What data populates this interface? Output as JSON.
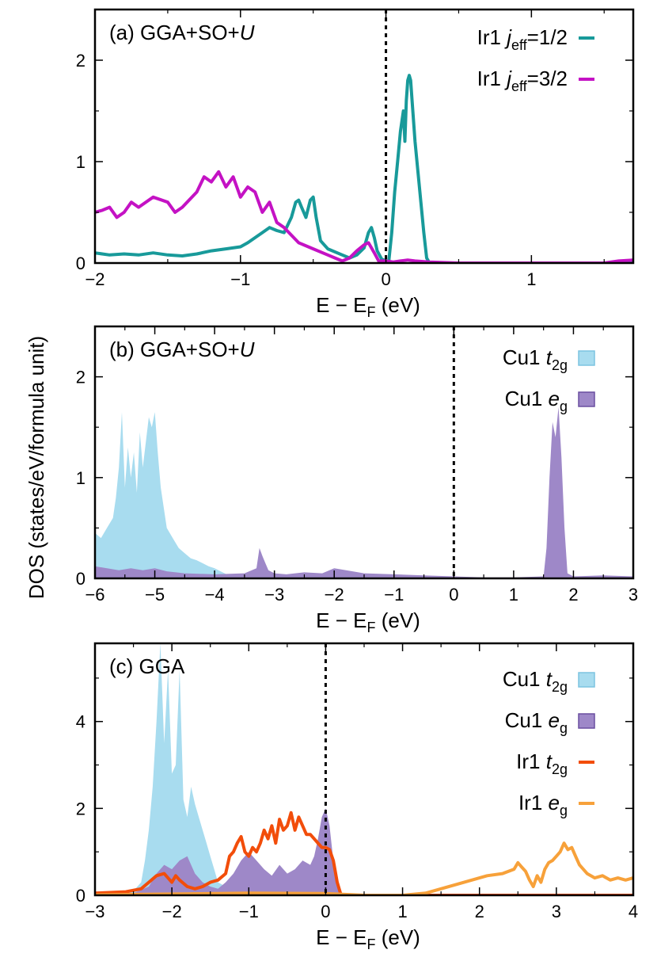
{
  "figure": {
    "ylabel": "DOS (states/eV/formula unit)"
  },
  "chart_data": [
    {
      "id": "a",
      "type": "line",
      "label_prefix": "(a) GGA+SO+",
      "label_italic": "U",
      "xlabel": "E − E",
      "xlabel_sub": "F",
      "xlabel_suffix": " (eV)",
      "xlim": [
        -2,
        1.7
      ],
      "ylim": [
        0,
        2.5
      ],
      "xticks": [
        -2,
        -1,
        0,
        1
      ],
      "xtick_labels": [
        "−2",
        "−1",
        "0",
        "1"
      ],
      "yticks": [
        0,
        1,
        2
      ],
      "ytick_labels": [
        "0",
        "1",
        "2"
      ],
      "fermi": 0,
      "legend": [
        {
          "pre": "Ir1 ",
          "it": "j",
          "sub": "eff",
          "post": "=1/2",
          "color": "#189a9a",
          "style": "line"
        },
        {
          "pre": "Ir1 ",
          "it": "j",
          "sub": "eff",
          "post": "=3/2",
          "color": "#c412c4",
          "style": "line"
        }
      ],
      "series": [
        {
          "name": "Ir1 jeff=1/2",
          "color": "#189a9a",
          "style": "line",
          "width": 4,
          "x": [
            -2.0,
            -1.9,
            -1.8,
            -1.7,
            -1.6,
            -1.5,
            -1.4,
            -1.3,
            -1.2,
            -1.1,
            -1.0,
            -0.95,
            -0.9,
            -0.85,
            -0.8,
            -0.75,
            -0.7,
            -0.65,
            -0.62,
            -0.6,
            -0.58,
            -0.55,
            -0.52,
            -0.5,
            -0.48,
            -0.45,
            -0.4,
            -0.3,
            -0.25,
            -0.2,
            -0.15,
            -0.12,
            -0.1,
            -0.08,
            -0.06,
            -0.03,
            0.0,
            0.02,
            0.04,
            0.06,
            0.08,
            0.1,
            0.12,
            0.13,
            0.14,
            0.15,
            0.16,
            0.17,
            0.18,
            0.2,
            0.22,
            0.24,
            0.26,
            0.28,
            0.3,
            0.5,
            1.0,
            1.7
          ],
          "y": [
            0.1,
            0.08,
            0.09,
            0.08,
            0.1,
            0.08,
            0.07,
            0.09,
            0.12,
            0.14,
            0.16,
            0.2,
            0.25,
            0.3,
            0.35,
            0.32,
            0.3,
            0.45,
            0.6,
            0.62,
            0.55,
            0.45,
            0.62,
            0.65,
            0.45,
            0.22,
            0.14,
            0.08,
            0.05,
            0.08,
            0.15,
            0.3,
            0.35,
            0.25,
            0.12,
            0.04,
            0.02,
            0.02,
            0.3,
            0.7,
            1.0,
            1.3,
            1.5,
            1.2,
            1.6,
            1.8,
            1.85,
            1.8,
            1.6,
            1.2,
            0.9,
            0.6,
            0.3,
            0.05,
            0.0,
            0.0,
            0.0,
            0.0
          ]
        },
        {
          "name": "Ir1 jeff=3/2",
          "color": "#c412c4",
          "style": "line",
          "width": 4,
          "x": [
            -2.0,
            -1.95,
            -1.9,
            -1.85,
            -1.8,
            -1.75,
            -1.7,
            -1.6,
            -1.5,
            -1.45,
            -1.4,
            -1.3,
            -1.25,
            -1.2,
            -1.15,
            -1.1,
            -1.05,
            -1.0,
            -0.95,
            -0.9,
            -0.85,
            -0.8,
            -0.75,
            -0.7,
            -0.6,
            -0.5,
            -0.4,
            -0.35,
            -0.3,
            -0.25,
            -0.2,
            -0.15,
            -0.12,
            -0.1,
            -0.08,
            -0.05,
            0.0,
            0.05,
            0.1,
            0.15,
            0.2,
            0.3,
            0.5,
            1.0,
            1.5,
            1.6,
            1.7
          ],
          "y": [
            0.5,
            0.52,
            0.55,
            0.45,
            0.5,
            0.6,
            0.55,
            0.65,
            0.6,
            0.5,
            0.55,
            0.7,
            0.85,
            0.8,
            0.9,
            0.75,
            0.85,
            0.65,
            0.75,
            0.7,
            0.5,
            0.6,
            0.4,
            0.35,
            0.2,
            0.14,
            0.08,
            0.05,
            0.02,
            0.05,
            0.12,
            0.18,
            0.2,
            0.15,
            0.1,
            0.02,
            0.02,
            0.01,
            0.02,
            0.03,
            0.02,
            0.01,
            0.0,
            0.0,
            0.0,
            0.02,
            0.03
          ]
        }
      ]
    },
    {
      "id": "b",
      "type": "area",
      "label_prefix": "(b) GGA+SO+",
      "label_italic": "U",
      "xlabel": "E − E",
      "xlabel_sub": "F",
      "xlabel_suffix": " (eV)",
      "xlim": [
        -6,
        3
      ],
      "ylim": [
        0,
        2.5
      ],
      "xticks": [
        -6,
        -5,
        -4,
        -3,
        -2,
        -1,
        0,
        1,
        2,
        3
      ],
      "xtick_labels": [
        "−6",
        "−5",
        "−4",
        "−3",
        "−2",
        "−1",
        "0",
        "1",
        "2",
        "3"
      ],
      "yticks": [
        0,
        1,
        2
      ],
      "ytick_labels": [
        "0",
        "1",
        "2"
      ],
      "fermi": 0,
      "legend": [
        {
          "pre": "Cu1 ",
          "it": "t",
          "sub": "2g",
          "post": "",
          "color": "#a8dcef",
          "style": "fill"
        },
        {
          "pre": "Cu1 ",
          "it": "e",
          "sub": "g",
          "post": "",
          "color": "#9e88c8",
          "style": "fill"
        }
      ],
      "series": [
        {
          "name": "Cu1 t2g",
          "color": "#a8dcef",
          "style": "fill",
          "x": [
            -6.0,
            -5.9,
            -5.8,
            -5.7,
            -5.65,
            -5.6,
            -5.55,
            -5.5,
            -5.45,
            -5.4,
            -5.35,
            -5.3,
            -5.25,
            -5.2,
            -5.15,
            -5.1,
            -5.05,
            -5.0,
            -4.95,
            -4.9,
            -4.85,
            -4.8,
            -4.7,
            -4.6,
            -4.5,
            -4.4,
            -4.3,
            -4.2,
            -4.1,
            -4.0,
            -3.9,
            -3.8,
            -3.7,
            -3.6,
            3.0
          ],
          "y": [
            0.45,
            0.4,
            0.5,
            0.6,
            0.8,
            1.1,
            1.65,
            0.9,
            1.3,
            1.0,
            1.25,
            0.85,
            1.45,
            1.1,
            1.35,
            1.6,
            1.5,
            1.65,
            1.25,
            0.9,
            0.7,
            0.5,
            0.4,
            0.3,
            0.25,
            0.2,
            0.18,
            0.15,
            0.12,
            0.1,
            0.07,
            0.04,
            0.01,
            0.0,
            0.0
          ]
        },
        {
          "name": "Cu1 eg",
          "color": "#9e88c8",
          "style": "fill",
          "x": [
            -6.0,
            -5.8,
            -5.6,
            -5.4,
            -5.2,
            -5.0,
            -4.8,
            -4.5,
            -4.0,
            -3.5,
            -3.3,
            -3.25,
            -3.2,
            -3.15,
            -3.1,
            -3.0,
            -2.8,
            -2.5,
            -2.2,
            -2.0,
            -1.8,
            -1.5,
            -1.0,
            -0.5,
            0.0,
            0.5,
            1.0,
            1.5,
            1.55,
            1.6,
            1.65,
            1.7,
            1.75,
            1.8,
            1.85,
            1.9,
            2.0,
            2.5,
            3.0
          ],
          "y": [
            0.12,
            0.1,
            0.08,
            0.1,
            0.08,
            0.1,
            0.07,
            0.05,
            0.04,
            0.05,
            0.1,
            0.3,
            0.22,
            0.15,
            0.08,
            0.05,
            0.04,
            0.06,
            0.05,
            0.1,
            0.08,
            0.05,
            0.04,
            0.03,
            0.02,
            0.01,
            0.01,
            0.02,
            0.3,
            1.0,
            1.55,
            1.4,
            1.7,
            1.2,
            0.5,
            0.05,
            0.02,
            0.03,
            0.02
          ]
        }
      ]
    },
    {
      "id": "c",
      "type": "area",
      "label_prefix": "(c) GGA",
      "label_italic": "",
      "xlabel": "E − E",
      "xlabel_sub": "F",
      "xlabel_suffix": " (eV)",
      "xlim": [
        -3,
        4
      ],
      "ylim": [
        0,
        5.8
      ],
      "xticks": [
        -3,
        -2,
        -1,
        0,
        1,
        2,
        3,
        4
      ],
      "xtick_labels": [
        "−3",
        "−2",
        "−1",
        "0",
        "1",
        "2",
        "3",
        "4"
      ],
      "yticks": [
        0,
        2,
        4
      ],
      "ytick_labels": [
        "0",
        "2",
        "4"
      ],
      "fermi": 0,
      "legend": [
        {
          "pre": "Cu1 ",
          "it": "t",
          "sub": "2g",
          "post": "",
          "color": "#a8dcef",
          "style": "fill"
        },
        {
          "pre": "Cu1 ",
          "it": "e",
          "sub": "g",
          "post": "",
          "color": "#9e88c8",
          "style": "fill"
        },
        {
          "pre": "Ir1 ",
          "it": "t",
          "sub": "2g",
          "post": "",
          "color": "#f24d0a",
          "style": "line"
        },
        {
          "pre": "Ir1 ",
          "it": "e",
          "sub": "g",
          "post": "",
          "color": "#f7a13a",
          "style": "line"
        }
      ],
      "series": [
        {
          "name": "Cu1 t2g",
          "color": "#a8dcef",
          "style": "fill",
          "x": [
            -3.0,
            -2.7,
            -2.5,
            -2.4,
            -2.35,
            -2.3,
            -2.25,
            -2.2,
            -2.15,
            -2.1,
            -2.05,
            -2.0,
            -1.95,
            -1.9,
            -1.85,
            -1.8,
            -1.75,
            -1.7,
            -1.65,
            -1.6,
            -1.55,
            -1.5,
            -1.45,
            -1.4,
            -1.3,
            -1.2,
            -1.1,
            -1.0,
            -0.9,
            -0.8,
            -0.7,
            -0.6,
            -0.5,
            -0.4,
            -0.3,
            -0.2,
            -0.1,
            0.0,
            0.1,
            0.15,
            0.2,
            4.0
          ],
          "y": [
            0.02,
            0.05,
            0.1,
            0.3,
            0.8,
            1.5,
            2.5,
            4.0,
            5.8,
            3.5,
            5.2,
            2.8,
            3.0,
            5.2,
            2.2,
            1.8,
            2.5,
            2.1,
            1.8,
            1.5,
            1.2,
            0.9,
            0.6,
            0.3,
            0.2,
            0.15,
            0.2,
            0.15,
            0.1,
            0.12,
            0.1,
            0.15,
            0.12,
            0.1,
            0.15,
            0.12,
            0.1,
            0.1,
            0.05,
            0.02,
            0.0,
            0.0
          ]
        },
        {
          "name": "Cu1 eg",
          "color": "#9e88c8",
          "style": "fill",
          "x": [
            -3.0,
            -2.5,
            -2.3,
            -2.2,
            -2.1,
            -2.0,
            -1.9,
            -1.8,
            -1.7,
            -1.6,
            -1.5,
            -1.4,
            -1.3,
            -1.2,
            -1.1,
            -1.0,
            -0.9,
            -0.8,
            -0.7,
            -0.6,
            -0.5,
            -0.4,
            -0.3,
            -0.2,
            -0.15,
            -0.1,
            -0.05,
            0.0,
            0.05,
            0.1,
            0.15,
            0.2,
            4.0
          ],
          "y": [
            0.02,
            0.05,
            0.2,
            0.5,
            0.7,
            0.6,
            0.8,
            0.9,
            0.5,
            0.3,
            0.2,
            0.15,
            0.3,
            0.5,
            0.8,
            1.0,
            0.8,
            0.6,
            0.45,
            0.7,
            0.5,
            0.6,
            0.8,
            0.7,
            0.9,
            1.3,
            1.8,
            2.0,
            1.6,
            0.8,
            0.2,
            0.0,
            0.0
          ]
        },
        {
          "name": "Ir1 t2g",
          "color": "#f24d0a",
          "style": "line",
          "width": 4,
          "x": [
            -3.0,
            -2.6,
            -2.4,
            -2.3,
            -2.2,
            -2.1,
            -2.0,
            -1.95,
            -1.9,
            -1.8,
            -1.7,
            -1.6,
            -1.5,
            -1.4,
            -1.3,
            -1.25,
            -1.2,
            -1.15,
            -1.1,
            -1.05,
            -1.0,
            -0.95,
            -0.9,
            -0.85,
            -0.8,
            -0.75,
            -0.7,
            -0.65,
            -0.6,
            -0.55,
            -0.5,
            -0.45,
            -0.4,
            -0.35,
            -0.3,
            -0.25,
            -0.2,
            -0.15,
            -0.1,
            -0.05,
            0.0,
            0.05,
            0.1,
            0.15,
            0.2,
            4.0
          ],
          "y": [
            0.05,
            0.08,
            0.15,
            0.3,
            0.45,
            0.5,
            0.3,
            0.45,
            0.35,
            0.2,
            0.15,
            0.2,
            0.3,
            0.35,
            0.5,
            0.9,
            1.0,
            1.2,
            1.35,
            1.0,
            0.9,
            1.1,
            1.0,
            1.2,
            1.5,
            1.3,
            1.6,
            1.2,
            1.75,
            1.5,
            1.6,
            1.9,
            1.5,
            1.8,
            1.6,
            1.4,
            1.4,
            1.3,
            1.2,
            1.1,
            1.1,
            1.05,
            0.8,
            0.3,
            0.0,
            0.0
          ]
        },
        {
          "name": "Ir1 eg",
          "color": "#f7a13a",
          "style": "line",
          "width": 4,
          "x": [
            -3.0,
            -2.0,
            -1.0,
            0.0,
            0.5,
            1.0,
            1.3,
            1.5,
            1.7,
            1.9,
            2.1,
            2.3,
            2.45,
            2.5,
            2.55,
            2.6,
            2.65,
            2.7,
            2.75,
            2.8,
            2.85,
            2.9,
            2.95,
            3.0,
            3.05,
            3.1,
            3.15,
            3.2,
            3.25,
            3.3,
            3.4,
            3.5,
            3.6,
            3.7,
            3.8,
            3.9,
            4.0
          ],
          "y": [
            0.01,
            0.03,
            0.05,
            0.04,
            0.0,
            0.0,
            0.05,
            0.15,
            0.25,
            0.35,
            0.45,
            0.5,
            0.6,
            0.75,
            0.65,
            0.55,
            0.35,
            0.2,
            0.45,
            0.3,
            0.6,
            0.75,
            0.8,
            0.9,
            1.0,
            1.2,
            1.05,
            1.1,
            0.9,
            0.7,
            0.5,
            0.4,
            0.45,
            0.35,
            0.4,
            0.35,
            0.4
          ]
        }
      ]
    }
  ]
}
